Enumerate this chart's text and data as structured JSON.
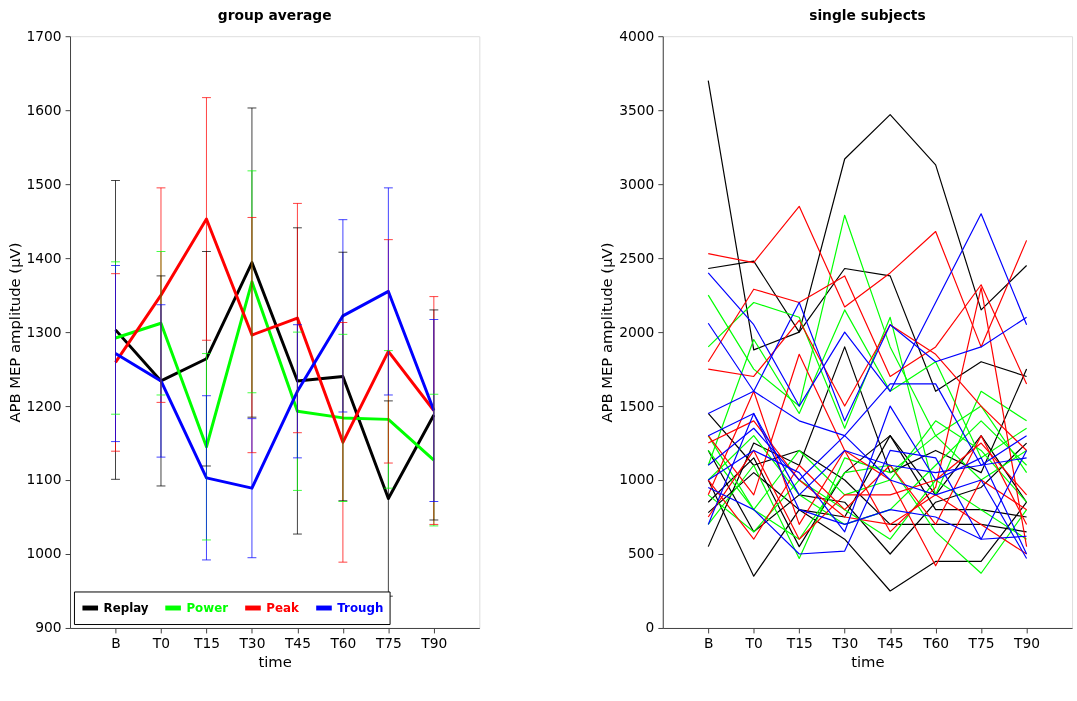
{
  "chart_data": [
    {
      "type": "line",
      "title": "group average",
      "xlabel": "time",
      "ylabel": "APB MEP amplitude (µV)",
      "categories": [
        "B",
        "T0",
        "T15",
        "T30",
        "T45",
        "T60",
        "T75",
        "T90"
      ],
      "ylim": [
        900,
        1700
      ],
      "yticks": [
        900,
        1000,
        1100,
        1200,
        1300,
        1400,
        1500,
        1600,
        1700
      ],
      "grid": false,
      "legend": "bottom left",
      "marker": "none",
      "line_style": "solid",
      "series": [
        {
          "name": "Replay",
          "color": "#000000",
          "values": [
            1303,
            1234,
            1264,
            1394,
            1234,
            1240,
            1075,
            1188
          ],
          "errors": [
            202,
            142,
            145,
            209,
            207,
            168,
            132,
            142
          ]
        },
        {
          "name": "Power",
          "color": "#00ff00",
          "values": [
            1292,
            1312,
            1145,
            1368,
            1193,
            1184,
            1182,
            1127
          ],
          "errors": [
            103,
            97,
            126,
            150,
            107,
            113,
            93,
            89
          ]
        },
        {
          "name": "Peak",
          "color": "#ff0000",
          "values": [
            1259,
            1350,
            1453,
            1296,
            1319,
            1151,
            1274,
            1194
          ],
          "errors": [
            120,
            145,
            164,
            159,
            155,
            162,
            151,
            154
          ]
        },
        {
          "name": "Trough",
          "color": "#0000ff",
          "values": [
            1271,
            1234,
            1103,
            1089,
            1220,
            1322,
            1355,
            1194
          ],
          "errors": [
            119,
            103,
            111,
            94,
            90,
            130,
            140,
            123
          ]
        }
      ]
    },
    {
      "type": "line",
      "title": "single subjects",
      "xlabel": "time",
      "ylabel": "APB MEP amplitude (µV)",
      "categories": [
        "B",
        "T0",
        "T15",
        "T30",
        "T45",
        "T60",
        "T75",
        "T90"
      ],
      "ylim": [
        0,
        4000
      ],
      "yticks": [
        0,
        500,
        1000,
        1500,
        2000,
        2500,
        3000,
        3500,
        4000
      ],
      "grid": false,
      "marker": "none",
      "line_style": "solid",
      "series": [
        {
          "color": "#000000",
          "values": [
            3700,
            1880,
            2000,
            3170,
            3470,
            3130,
            2150,
            2450
          ]
        },
        {
          "color": "#000000",
          "values": [
            2430,
            2480,
            2000,
            2430,
            2380,
            1600,
            1800,
            1700
          ]
        },
        {
          "color": "#000000",
          "values": [
            550,
            1250,
            1100,
            1900,
            1050,
            1200,
            1050,
            1750
          ]
        },
        {
          "color": "#000000",
          "values": [
            1000,
            350,
            800,
            600,
            250,
            450,
            450,
            850
          ]
        },
        {
          "color": "#000000",
          "values": [
            1200,
            650,
            900,
            850,
            500,
            850,
            950,
            1250
          ]
        },
        {
          "color": "#000000",
          "values": [
            850,
            1150,
            550,
            1050,
            1300,
            900,
            1300,
            850
          ]
        },
        {
          "color": "#000000",
          "values": [
            1450,
            1100,
            1200,
            1000,
            700,
            700,
            700,
            650
          ]
        },
        {
          "color": "#000000",
          "values": [
            780,
            1050,
            800,
            750,
            1300,
            800,
            800,
            750
          ]
        },
        {
          "color": "#00ff00",
          "values": [
            2250,
            1750,
            1500,
            2790,
            1900,
            1300,
            1500,
            1050
          ]
        },
        {
          "color": "#00ff00",
          "values": [
            1900,
            2200,
            2100,
            1350,
            2100,
            900,
            1600,
            1400
          ]
        },
        {
          "color": "#00ff00",
          "values": [
            1100,
            1950,
            1450,
            2150,
            1600,
            1800,
            1150,
            1350
          ]
        },
        {
          "color": "#00ff00",
          "values": [
            1300,
            800,
            600,
            1050,
            1100,
            650,
            370,
            800
          ]
        },
        {
          "color": "#00ff00",
          "values": [
            700,
            1100,
            470,
            1150,
            1050,
            1300,
            1000,
            1200
          ]
        },
        {
          "color": "#00ff00",
          "values": [
            1000,
            1300,
            900,
            700,
            800,
            1100,
            1400,
            1100
          ]
        },
        {
          "color": "#00ff00",
          "values": [
            1200,
            800,
            1200,
            900,
            1000,
            1400,
            1200,
            850
          ]
        },
        {
          "color": "#00ff00",
          "values": [
            900,
            650,
            1000,
            800,
            600,
            1000,
            800,
            600
          ]
        },
        {
          "color": "#ff0000",
          "values": [
            2530,
            2470,
            2850,
            2170,
            2400,
            2680,
            1900,
            2620
          ]
        },
        {
          "color": "#ff0000",
          "values": [
            1800,
            2290,
            2200,
            2380,
            1700,
            1900,
            2320,
            1650
          ]
        },
        {
          "color": "#ff0000",
          "values": [
            1750,
            1700,
            2080,
            1500,
            2050,
            1850,
            1500,
            1200
          ]
        },
        {
          "color": "#ff0000",
          "values": [
            1300,
            900,
            1850,
            1200,
            1000,
            420,
            1000,
            800
          ]
        },
        {
          "color": "#ff0000",
          "values": [
            900,
            1600,
            700,
            1200,
            650,
            950,
            2300,
            550
          ]
        },
        {
          "color": "#ff0000",
          "values": [
            1000,
            600,
            1100,
            800,
            1100,
            700,
            1300,
            700
          ]
        },
        {
          "color": "#ff0000",
          "values": [
            1250,
            1400,
            1000,
            750,
            700,
            900,
            700,
            500
          ]
        },
        {
          "color": "#ff0000",
          "values": [
            750,
            1200,
            600,
            900,
            900,
            1000,
            1250,
            900
          ]
        },
        {
          "color": "#0000ff",
          "values": [
            2400,
            2050,
            1500,
            2000,
            1600,
            2200,
            2800,
            2050
          ]
        },
        {
          "color": "#0000ff",
          "values": [
            2060,
            1600,
            2200,
            1400,
            2050,
            1800,
            1900,
            2100
          ]
        },
        {
          "color": "#0000ff",
          "values": [
            1450,
            1600,
            1400,
            1300,
            1650,
            1650,
            1100,
            1300
          ]
        },
        {
          "color": "#0000ff",
          "values": [
            1300,
            1450,
            900,
            1200,
            1100,
            1050,
            1100,
            1150
          ]
        },
        {
          "color": "#0000ff",
          "values": [
            1000,
            1200,
            1050,
            650,
            1500,
            1000,
            1150,
            500
          ]
        },
        {
          "color": "#0000ff",
          "values": [
            700,
            1450,
            800,
            700,
            800,
            750,
            600,
            620
          ]
        },
        {
          "color": "#0000ff",
          "values": [
            950,
            800,
            500,
            520,
            1200,
            1150,
            600,
            1200
          ]
        },
        {
          "color": "#0000ff",
          "values": [
            1100,
            1350,
            1000,
            1300,
            1000,
            900,
            1000,
            470
          ]
        }
      ]
    }
  ]
}
